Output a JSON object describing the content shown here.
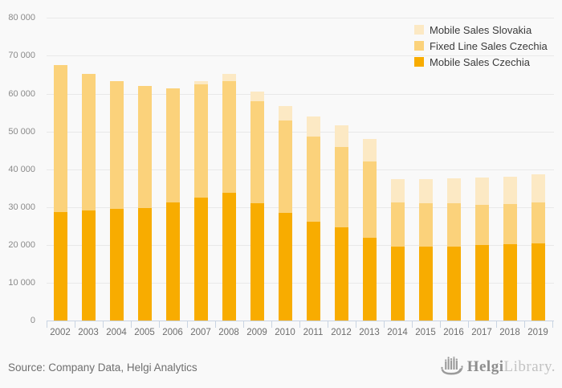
{
  "colors": {
    "background": "#f9f9f9",
    "grid": "#e9e9e9",
    "axis": "#c9d4e2",
    "mobile_sales_czechia": "#F8AC00",
    "fixed_line_sales_czechia": "#FBD27B",
    "mobile_sales_slovakia": "#FCE9C4"
  },
  "chart_data": {
    "type": "bar",
    "stacked": true,
    "categories": [
      "2002",
      "2003",
      "2004",
      "2005",
      "2006",
      "2007",
      "2008",
      "2009",
      "2010",
      "2011",
      "2012",
      "2013",
      "2014",
      "2015",
      "2016",
      "2017",
      "2018",
      "2019"
    ],
    "series": [
      {
        "name": "Mobile Sales Czechia",
        "color": "#F8AC00",
        "values": [
          28800,
          29100,
          29600,
          29700,
          31200,
          32600,
          33700,
          31100,
          28600,
          26100,
          24600,
          22000,
          19500,
          19500,
          19600,
          20100,
          20200,
          20500
        ]
      },
      {
        "name": "Fixed Line Sales Czechia",
        "color": "#FBD27B",
        "values": [
          38800,
          36200,
          33800,
          32300,
          30100,
          29800,
          29600,
          26800,
          24200,
          22500,
          21300,
          20100,
          11800,
          11500,
          11400,
          10600,
          10700,
          10800
        ]
      },
      {
        "name": "Mobile Sales Slovakia",
        "color": "#FCE9C4",
        "values": [
          0,
          0,
          0,
          0,
          0,
          800,
          2000,
          2600,
          4000,
          5300,
          5700,
          6000,
          6100,
          6400,
          6600,
          7200,
          7200,
          7400
        ]
      }
    ],
    "legend": [
      "Mobile Sales Slovakia",
      "Fixed Line Sales Czechia",
      "Mobile Sales Czechia"
    ],
    "legend_position": "top-right",
    "ylim": [
      0,
      80000
    ],
    "grid": true,
    "yticks": [
      {
        "value": 80000,
        "label": "80 000"
      },
      {
        "value": 70000,
        "label": "70 000"
      },
      {
        "value": 60000,
        "label": "60 000"
      },
      {
        "value": 50000,
        "label": "50 000"
      },
      {
        "value": 40000,
        "label": "40 000"
      },
      {
        "value": 30000,
        "label": "30 000"
      },
      {
        "value": 20000,
        "label": "20 000"
      },
      {
        "value": 10000,
        "label": "10 000"
      },
      {
        "value": 0,
        "label": "0"
      }
    ]
  },
  "footer": {
    "source": "Source: Company Data, Helgi Analytics",
    "logo_name": "Helgi",
    "logo_suffix": "Library."
  }
}
